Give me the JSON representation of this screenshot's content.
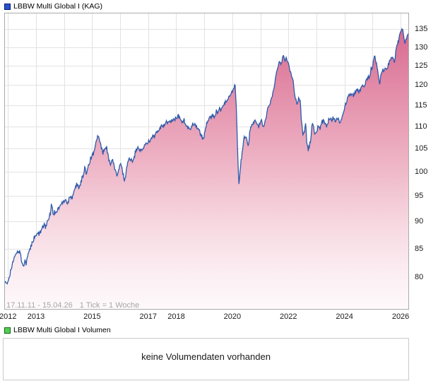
{
  "header": {
    "title": "LBBW Multi Global I (KAG)",
    "marker_color": "#2a52c8",
    "marker_border": "#001a7a"
  },
  "price_chart": {
    "footnote": {
      "range": "17.11.11 - 15.04.26",
      "tick": "1 Tick = 1 Woche"
    },
    "x_label_years": [
      2012,
      2013,
      2015,
      2017,
      2018,
      2020,
      2022,
      2024,
      2026
    ],
    "grid_color": "#e2e2e2",
    "border_color": "#ababab",
    "line_color": "#2d5aaa",
    "fill_gradient_top": "#d4628b",
    "fill_gradient_bottom": "#fef9fb"
  },
  "volume": {
    "legend": "LBBW Multi Global I Volumen",
    "marker_color": "#55cc55",
    "marker_border": "#0b6b0b",
    "message": "keine Volumendaten vorhanden"
  },
  "chart_data": {
    "type": "area",
    "title": "LBBW Multi Global I (KAG)",
    "x_axis": {
      "start": 2011.879,
      "end": 2026.288,
      "unit": "year",
      "gridline_years": [
        2012,
        2013,
        2014,
        2015,
        2016,
        2017,
        2018,
        2019,
        2020,
        2021,
        2022,
        2023,
        2024,
        2025,
        2026
      ],
      "label_years": [
        2012,
        2013,
        2015,
        2017,
        2018,
        2020,
        2022,
        2024,
        2026
      ],
      "date_range": "17.11.11 - 15.04.26",
      "resolution": "1 Tick = 1 Woche"
    },
    "y_axis": {
      "scale": "log",
      "ticks": [
        80,
        85,
        90,
        95,
        100,
        105,
        110,
        115,
        120,
        125,
        130,
        135
      ],
      "top_value": 139.7,
      "bottom_value": 74.8
    },
    "series": [
      {
        "name": "LBBW Multi Global I",
        "points": [
          [
            2011.88,
            79.6
          ],
          [
            2011.92,
            79.0
          ],
          [
            2011.96,
            78.7
          ],
          [
            2012.0,
            79.4
          ],
          [
            2012.05,
            80.4
          ],
          [
            2012.1,
            81.2
          ],
          [
            2012.16,
            82.2
          ],
          [
            2012.22,
            83.3
          ],
          [
            2012.28,
            84.0
          ],
          [
            2012.33,
            84.5
          ],
          [
            2012.37,
            84.1
          ],
          [
            2012.42,
            84.8
          ],
          [
            2012.47,
            83.2
          ],
          [
            2012.52,
            82.2
          ],
          [
            2012.56,
            82.0
          ],
          [
            2012.6,
            82.9
          ],
          [
            2012.65,
            82.5
          ],
          [
            2012.71,
            83.7
          ],
          [
            2012.78,
            84.9
          ],
          [
            2012.85,
            86.0
          ],
          [
            2012.93,
            86.8
          ],
          [
            2013.0,
            87.4
          ],
          [
            2013.08,
            87.9
          ],
          [
            2013.13,
            87.4
          ],
          [
            2013.2,
            88.8
          ],
          [
            2013.28,
            89.4
          ],
          [
            2013.34,
            88.8
          ],
          [
            2013.42,
            90.1
          ],
          [
            2013.5,
            91.3
          ],
          [
            2013.56,
            93.5
          ],
          [
            2013.61,
            91.4
          ],
          [
            2013.7,
            92.0
          ],
          [
            2013.82,
            92.6
          ],
          [
            2013.94,
            93.7
          ],
          [
            2014.06,
            94.2
          ],
          [
            2014.12,
            93.4
          ],
          [
            2014.2,
            95.1
          ],
          [
            2014.28,
            94.7
          ],
          [
            2014.36,
            96.1
          ],
          [
            2014.45,
            97.3
          ],
          [
            2014.53,
            96.6
          ],
          [
            2014.61,
            98.3
          ],
          [
            2014.69,
            99.1
          ],
          [
            2014.74,
            100.9
          ],
          [
            2014.79,
            99.7
          ],
          [
            2014.86,
            101.3
          ],
          [
            2014.96,
            102.9
          ],
          [
            2015.05,
            104.1
          ],
          [
            2015.11,
            105.2
          ],
          [
            2015.16,
            106.8
          ],
          [
            2015.21,
            108.3
          ],
          [
            2015.26,
            106.7
          ],
          [
            2015.32,
            105.5
          ],
          [
            2015.39,
            103.9
          ],
          [
            2015.45,
            104.9
          ],
          [
            2015.52,
            105.2
          ],
          [
            2015.58,
            103.1
          ],
          [
            2015.64,
            101.3
          ],
          [
            2015.7,
            102.8
          ],
          [
            2015.77,
            101.5
          ],
          [
            2015.83,
            100.3
          ],
          [
            2015.89,
            98.8
          ],
          [
            2015.95,
            100.3
          ],
          [
            2016.01,
            101.8
          ],
          [
            2016.06,
            100.6
          ],
          [
            2016.11,
            99.4
          ],
          [
            2016.16,
            98.0
          ],
          [
            2016.21,
            99.9
          ],
          [
            2016.26,
            102.1
          ],
          [
            2016.33,
            102.8
          ],
          [
            2016.39,
            102.3
          ],
          [
            2016.45,
            102.5
          ],
          [
            2016.52,
            103.7
          ],
          [
            2016.59,
            104.8
          ],
          [
            2016.64,
            105.2
          ],
          [
            2016.7,
            104.6
          ],
          [
            2016.76,
            104.4
          ],
          [
            2016.84,
            105.3
          ],
          [
            2016.92,
            106.0
          ],
          [
            2017.0,
            106.5
          ],
          [
            2017.1,
            107.1
          ],
          [
            2017.2,
            107.7
          ],
          [
            2017.31,
            108.5
          ],
          [
            2017.41,
            109.3
          ],
          [
            2017.5,
            110.0
          ],
          [
            2017.6,
            110.6
          ],
          [
            2017.69,
            111.1
          ],
          [
            2017.78,
            110.9
          ],
          [
            2017.88,
            111.5
          ],
          [
            2017.97,
            111.8
          ],
          [
            2018.08,
            112.4
          ],
          [
            2018.14,
            111.7
          ],
          [
            2018.21,
            111.1
          ],
          [
            2018.27,
            111.5
          ],
          [
            2018.34,
            110.4
          ],
          [
            2018.41,
            109.6
          ],
          [
            2018.48,
            109.3
          ],
          [
            2018.54,
            110.0
          ],
          [
            2018.61,
            110.8
          ],
          [
            2018.67,
            110.5
          ],
          [
            2018.73,
            110.0
          ],
          [
            2018.79,
            109.4
          ],
          [
            2018.85,
            108.7
          ],
          [
            2018.91,
            107.8
          ],
          [
            2018.96,
            106.9
          ],
          [
            2019.02,
            108.5
          ],
          [
            2019.08,
            110.7
          ],
          [
            2019.15,
            111.6
          ],
          [
            2019.23,
            112.1
          ],
          [
            2019.31,
            112.7
          ],
          [
            2019.36,
            112.3
          ],
          [
            2019.44,
            113.7
          ],
          [
            2019.48,
            113.2
          ],
          [
            2019.55,
            114.3
          ],
          [
            2019.6,
            113.7
          ],
          [
            2019.66,
            114.8
          ],
          [
            2019.72,
            115.3
          ],
          [
            2019.79,
            115.9
          ],
          [
            2019.86,
            116.8
          ],
          [
            2019.94,
            117.6
          ],
          [
            2020.02,
            118.4
          ],
          [
            2020.1,
            120.2
          ],
          [
            2020.14,
            115.0
          ],
          [
            2020.17,
            108.0
          ],
          [
            2020.19,
            103.5
          ],
          [
            2020.21,
            100.9
          ],
          [
            2020.23,
            97.4
          ],
          [
            2020.27,
            99.6
          ],
          [
            2020.31,
            102.2
          ],
          [
            2020.36,
            104.5
          ],
          [
            2020.41,
            107.0
          ],
          [
            2020.46,
            108.0
          ],
          [
            2020.51,
            106.8
          ],
          [
            2020.56,
            105.2
          ],
          [
            2020.6,
            107.3
          ],
          [
            2020.65,
            110.0
          ],
          [
            2020.71,
            110.5
          ],
          [
            2020.77,
            111.0
          ],
          [
            2020.83,
            111.3
          ],
          [
            2020.88,
            110.4
          ],
          [
            2020.93,
            110.0
          ],
          [
            2020.99,
            110.8
          ],
          [
            2021.04,
            111.4
          ],
          [
            2021.08,
            110.3
          ],
          [
            2021.12,
            109.6
          ],
          [
            2021.17,
            111.4
          ],
          [
            2021.22,
            113.0
          ],
          [
            2021.27,
            114.2
          ],
          [
            2021.32,
            115.1
          ],
          [
            2021.37,
            115.9
          ],
          [
            2021.42,
            117.2
          ],
          [
            2021.47,
            118.9
          ],
          [
            2021.52,
            120.8
          ],
          [
            2021.57,
            122.7
          ],
          [
            2021.62,
            124.4
          ],
          [
            2021.67,
            125.7
          ],
          [
            2021.71,
            126.3
          ],
          [
            2021.74,
            125.2
          ],
          [
            2021.79,
            127.3
          ],
          [
            2021.83,
            128.3
          ],
          [
            2021.87,
            126.1
          ],
          [
            2021.91,
            127.3
          ],
          [
            2021.95,
            126.6
          ],
          [
            2022.0,
            125.8
          ],
          [
            2022.05,
            123.8
          ],
          [
            2022.11,
            122.4
          ],
          [
            2022.17,
            120.9
          ],
          [
            2022.23,
            117.4
          ],
          [
            2022.3,
            115.3
          ],
          [
            2022.37,
            116.7
          ],
          [
            2022.42,
            115.9
          ],
          [
            2022.47,
            110.6
          ],
          [
            2022.52,
            108.2
          ],
          [
            2022.57,
            108.9
          ],
          [
            2022.61,
            111.3
          ],
          [
            2022.65,
            106.6
          ],
          [
            2022.7,
            104.7
          ],
          [
            2022.75,
            105.3
          ],
          [
            2022.8,
            107.4
          ],
          [
            2022.85,
            111.2
          ],
          [
            2022.9,
            109.6
          ],
          [
            2022.95,
            108.2
          ],
          [
            2023.01,
            108.9
          ],
          [
            2023.07,
            110.2
          ],
          [
            2023.13,
            109.7
          ],
          [
            2023.19,
            111.0
          ],
          [
            2023.25,
            111.4
          ],
          [
            2023.31,
            110.6
          ],
          [
            2023.37,
            110.2
          ],
          [
            2023.43,
            111.4
          ],
          [
            2023.49,
            112.1
          ],
          [
            2023.55,
            111.4
          ],
          [
            2023.61,
            112.2
          ],
          [
            2023.67,
            111.1
          ],
          [
            2023.73,
            112.4
          ],
          [
            2023.79,
            111.4
          ],
          [
            2023.85,
            110.6
          ],
          [
            2023.91,
            112.1
          ],
          [
            2023.97,
            113.8
          ],
          [
            2024.03,
            115.1
          ],
          [
            2024.09,
            116.3
          ],
          [
            2024.15,
            118.0
          ],
          [
            2024.2,
            117.3
          ],
          [
            2024.26,
            117.8
          ],
          [
            2024.31,
            117.4
          ],
          [
            2024.37,
            117.9
          ],
          [
            2024.42,
            118.5
          ],
          [
            2024.47,
            118.7
          ],
          [
            2024.52,
            118.3
          ],
          [
            2024.58,
            119.1
          ],
          [
            2024.63,
            120.0
          ],
          [
            2024.68,
            119.6
          ],
          [
            2024.73,
            120.3
          ],
          [
            2024.78,
            121.4
          ],
          [
            2024.83,
            122.1
          ],
          [
            2024.88,
            121.8
          ],
          [
            2024.92,
            122.9
          ],
          [
            2024.95,
            124.5
          ],
          [
            2024.98,
            123.2
          ],
          [
            2025.03,
            126.7
          ],
          [
            2025.08,
            127.5
          ],
          [
            2025.13,
            125.9
          ],
          [
            2025.18,
            124.0
          ],
          [
            2025.22,
            121.8
          ],
          [
            2025.26,
            120.5
          ],
          [
            2025.31,
            123.3
          ],
          [
            2025.37,
            123.7
          ],
          [
            2025.43,
            124.2
          ],
          [
            2025.48,
            124.6
          ],
          [
            2025.53,
            124.2
          ],
          [
            2025.58,
            125.8
          ],
          [
            2025.63,
            126.6
          ],
          [
            2025.68,
            127.1
          ],
          [
            2025.73,
            127.4
          ],
          [
            2025.77,
            125.9
          ],
          [
            2025.82,
            128.3
          ],
          [
            2025.87,
            130.2
          ],
          [
            2025.92,
            131.7
          ],
          [
            2025.97,
            133.3
          ],
          [
            2026.02,
            134.8
          ],
          [
            2026.05,
            135.7
          ],
          [
            2026.09,
            134.2
          ],
          [
            2026.12,
            132.3
          ],
          [
            2026.15,
            130.9
          ],
          [
            2026.19,
            132.4
          ],
          [
            2026.23,
            133.0
          ],
          [
            2026.29,
            133.9
          ]
        ]
      }
    ]
  }
}
